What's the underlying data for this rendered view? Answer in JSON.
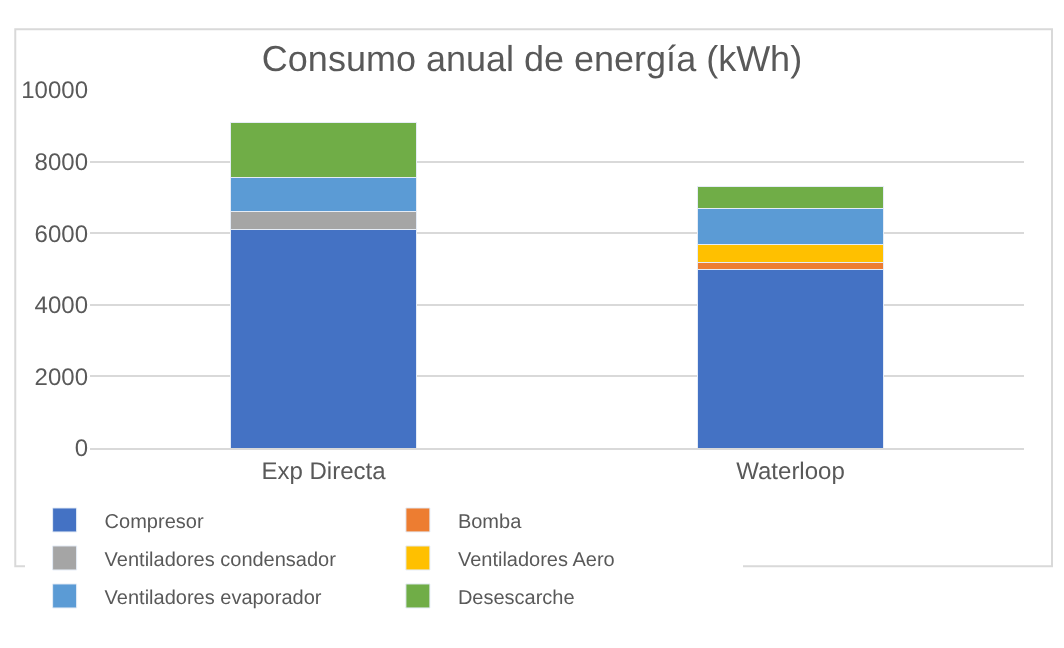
{
  "chart_data": {
    "type": "bar",
    "title": "Consumo anual de energía (kWh)",
    "stacked": true,
    "categories": [
      "Exp Directa",
      "Waterloop"
    ],
    "series": [
      {
        "name": "Compresor",
        "color": "#4472c4",
        "values": [
          6100,
          5000
        ]
      },
      {
        "name": "Bomba",
        "color": "#ed7d31",
        "values": [
          0,
          180
        ]
      },
      {
        "name": "Ventiladores condensador",
        "color": "#a5a5a5",
        "values": [
          500,
          0
        ]
      },
      {
        "name": "Ventiladores Aero",
        "color": "#ffc000",
        "values": [
          0,
          510
        ]
      },
      {
        "name": "Ventiladores evaporador",
        "color": "#5b9bd5",
        "values": [
          950,
          990
        ]
      },
      {
        "name": "Desescarche",
        "color": "#70ad47",
        "values": [
          1550,
          630
        ]
      }
    ],
    "ylim": [
      0,
      10000
    ],
    "yticks": [
      0,
      2000,
      4000,
      6000,
      8000,
      10000
    ],
    "grid": "y",
    "legend": "bottom"
  }
}
